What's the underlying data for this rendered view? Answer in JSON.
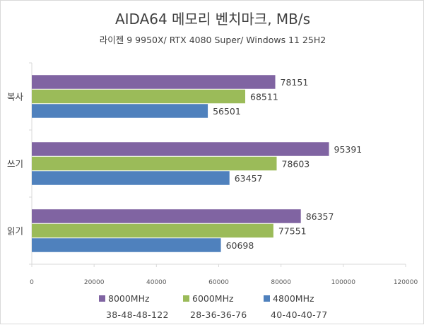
{
  "chart_data": {
    "type": "bar",
    "orientation": "horizontal",
    "title": "AIDA64 메모리 벤치마크, MB/s",
    "subtitle": "라이젠 9 9950X/ RTX 4080 Super/ Windows 11 25H2",
    "categories": [
      "복사",
      "쓰기",
      "읽기"
    ],
    "series": [
      {
        "name": "8000MHz",
        "color": "#8064a2",
        "values": [
          78151,
          95391,
          86357
        ]
      },
      {
        "name": "6000MHz",
        "color": "#9bbb59",
        "values": [
          68511,
          78603,
          77551
        ]
      },
      {
        "name": "4800MHz",
        "color": "#4f81bd",
        "values": [
          56501,
          63457,
          60698
        ]
      }
    ],
    "xlim": [
      0,
      120000
    ],
    "xticks": [
      "0",
      "20000",
      "40000",
      "60000",
      "80000",
      "100000",
      "120000"
    ],
    "grid": false,
    "legend_position": "bottom",
    "timings": [
      "38-48-48-122",
      "28-36-36-76",
      "40-40-40-77"
    ]
  }
}
